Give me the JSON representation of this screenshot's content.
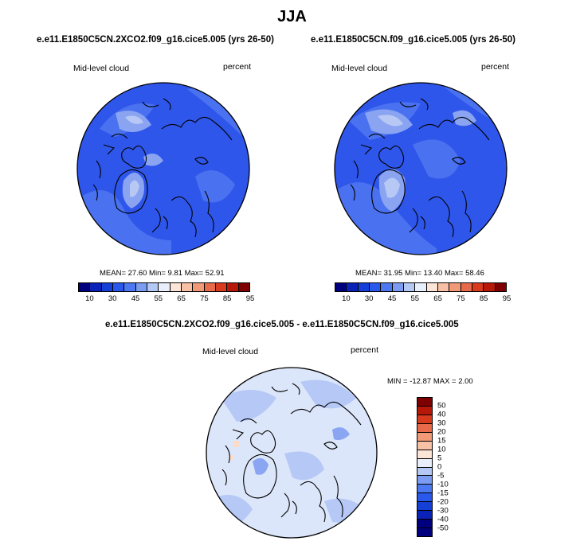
{
  "figure_title": "JJA",
  "panels": [
    {
      "case": "e.e11.E1850C5CN.2XCO2.f09_g16.cice5.005 (yrs 26-50)",
      "variable": "Mid-level cloud",
      "units": "percent",
      "stats": "MEAN=  27.60  Min=   9.81  Max=  52.91",
      "mean": 27.6,
      "min": 9.81,
      "max": 52.91
    },
    {
      "case": "e.e11.E1850C5CN.f09_g16.cice5.005 (yrs 26-50)",
      "variable": "Mid-level cloud",
      "units": "percent",
      "stats": "MEAN=  31.95  Min=  13.40  Max=  58.46",
      "mean": 31.95,
      "min": 13.4,
      "max": 58.46
    }
  ],
  "diff": {
    "case": "e.e11.E1850C5CN.2XCO2.f09_g16.cice5.005 - e.e11.E1850C5CN.f09_g16.cice5.005",
    "variable": "Mid-level cloud",
    "units": "percent",
    "stats": "MIN = -12.87 MAX =   2.00",
    "min": -12.87,
    "max": 2.0
  },
  "abs_colorbar": {
    "labels": [
      "10",
      "30",
      "45",
      "55",
      "65",
      "75",
      "85",
      "95"
    ],
    "colors": [
      "#00007f",
      "#0a22b8",
      "#1440d8",
      "#2858ec",
      "#4c78f2",
      "#7c9cf2",
      "#b4c8f4",
      "#e8eefa",
      "#fce4d6",
      "#f8c0a4",
      "#f29a78",
      "#e86a4a",
      "#d83a1e",
      "#b81808",
      "#7f0000"
    ]
  },
  "diff_colorbar": {
    "labels": [
      "50",
      "40",
      "30",
      "20",
      "15",
      "10",
      "5",
      "0",
      "-5",
      "-10",
      "-15",
      "-20",
      "-30",
      "-40",
      "-50"
    ],
    "colors": [
      "#7f0000",
      "#b81808",
      "#d83a1e",
      "#e86a4a",
      "#f29a78",
      "#f8c0a4",
      "#fce4d6",
      "#e8eefa",
      "#b4c8f4",
      "#7c9cf2",
      "#4c78f2",
      "#2858ec",
      "#1440d8",
      "#0a22b8",
      "#00007f",
      "#00007f"
    ]
  },
  "colors": {
    "map_base": "#2f56ea",
    "map_mid": "#4a72f0",
    "map_light": "#8aa4f2",
    "map_lightest": "#b8c8f4",
    "diff_base": "#dce6fa",
    "diff_mid": "#b6c8f6",
    "diff_dark": "#8aa6f2",
    "diff_pos": "#fbdccb"
  }
}
